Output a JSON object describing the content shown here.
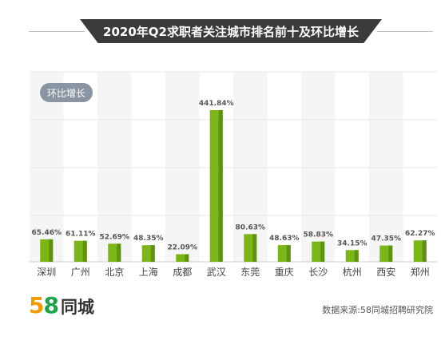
{
  "header": {
    "title": "2020年Q2求职者关注城市排名前十及环比增长"
  },
  "badge": {
    "label": "环比增长"
  },
  "chart_data": {
    "type": "bar",
    "title": "2020年Q2求职者关注城市排名前十及环比增长",
    "categories": [
      "深圳",
      "广州",
      "北京",
      "上海",
      "成都",
      "武汉",
      "东莞",
      "重庆",
      "长沙",
      "杭州",
      "西安",
      "郑州"
    ],
    "series": [
      {
        "values": [
          65.46,
          61.11,
          52.69,
          48.35,
          22.09,
          441.84,
          80.63,
          48.63,
          58.83,
          34.15,
          47.35,
          62.27
        ],
        "labels": [
          "65.46%",
          "61.11%",
          "52.69%",
          "48.35%",
          "22.09%",
          "441.84%",
          "80.63%",
          "48.63%",
          "58.83%",
          "34.15%",
          "47.35%",
          "62.27%"
        ]
      }
    ],
    "ylim": [
      0,
      530
    ],
    "grid": true,
    "unit": "%",
    "colors": {
      "bar": "#7cb518",
      "bar_shade": "#5e9311",
      "column_alt": "#f5f5f5",
      "grid": "#e6e6e6"
    }
  },
  "footer": {
    "logo_digit_1": "5",
    "logo_digit_2": "8",
    "logo_text": "同城",
    "source": "数据来源:58同城招聘研究院"
  }
}
